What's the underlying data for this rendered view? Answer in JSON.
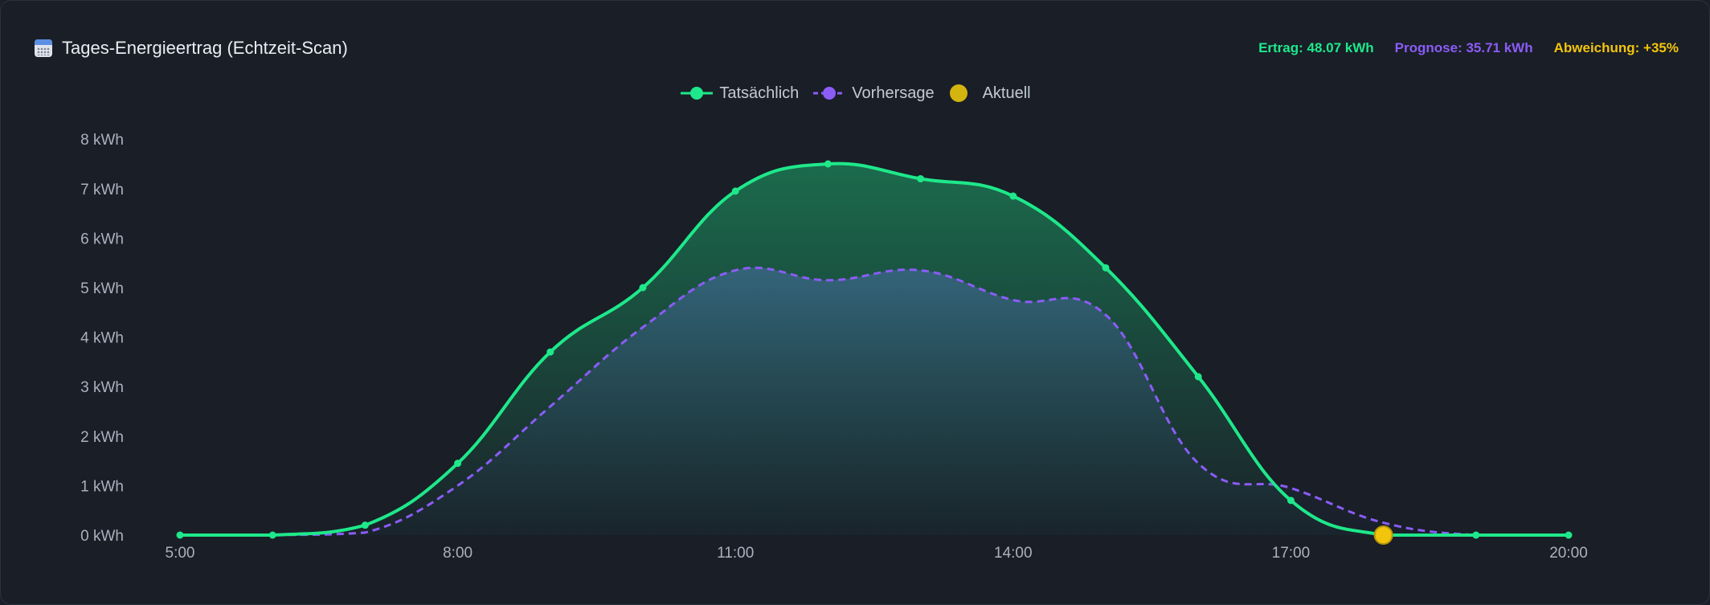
{
  "header": {
    "title": "Tages-Energieertrag (Echtzeit-Scan)",
    "icon": "calendar-icon",
    "stats": {
      "ertrag": "Ertrag: 48.07 kWh",
      "prognose": "Prognose: 35.71 kWh",
      "abweichung": "Abweichung: +35%"
    }
  },
  "colors": {
    "actual": "#1ee88a",
    "forecast": "#8b5cf6",
    "current": "#f2c40c",
    "axis_text": "#aab2be"
  },
  "chart_data": {
    "type": "area",
    "x": [
      "5:00",
      "6:00",
      "7:00",
      "8:00",
      "9:00",
      "10:00",
      "11:00",
      "12:00",
      "13:00",
      "14:00",
      "15:00",
      "16:00",
      "17:00",
      "18:00",
      "19:00",
      "20:00"
    ],
    "xticks": [
      "5:00",
      "8:00",
      "11:00",
      "14:00",
      "17:00",
      "20:00"
    ],
    "yticks": [
      "0 kWh",
      "1 kWh",
      "2 kWh",
      "3 kWh",
      "4 kWh",
      "5 kWh",
      "6 kWh",
      "7 kWh",
      "8 kWh"
    ],
    "ylim": [
      0,
      8
    ],
    "series": [
      {
        "name": "Tatsächlich",
        "values": [
          0,
          0,
          0.2,
          1.45,
          3.7,
          5.0,
          6.95,
          7.5,
          7.2,
          6.85,
          5.4,
          3.2,
          0.7,
          0,
          0,
          0
        ]
      },
      {
        "name": "Vorhersage",
        "values": [
          0,
          0,
          0.05,
          1.0,
          2.6,
          4.2,
          5.35,
          5.15,
          5.35,
          4.75,
          4.45,
          1.45,
          0.95,
          0.25,
          0,
          0
        ]
      }
    ],
    "current": {
      "name": "Aktuell",
      "x": "18:00",
      "value": 0
    },
    "grid": false,
    "legend": "top-center"
  }
}
